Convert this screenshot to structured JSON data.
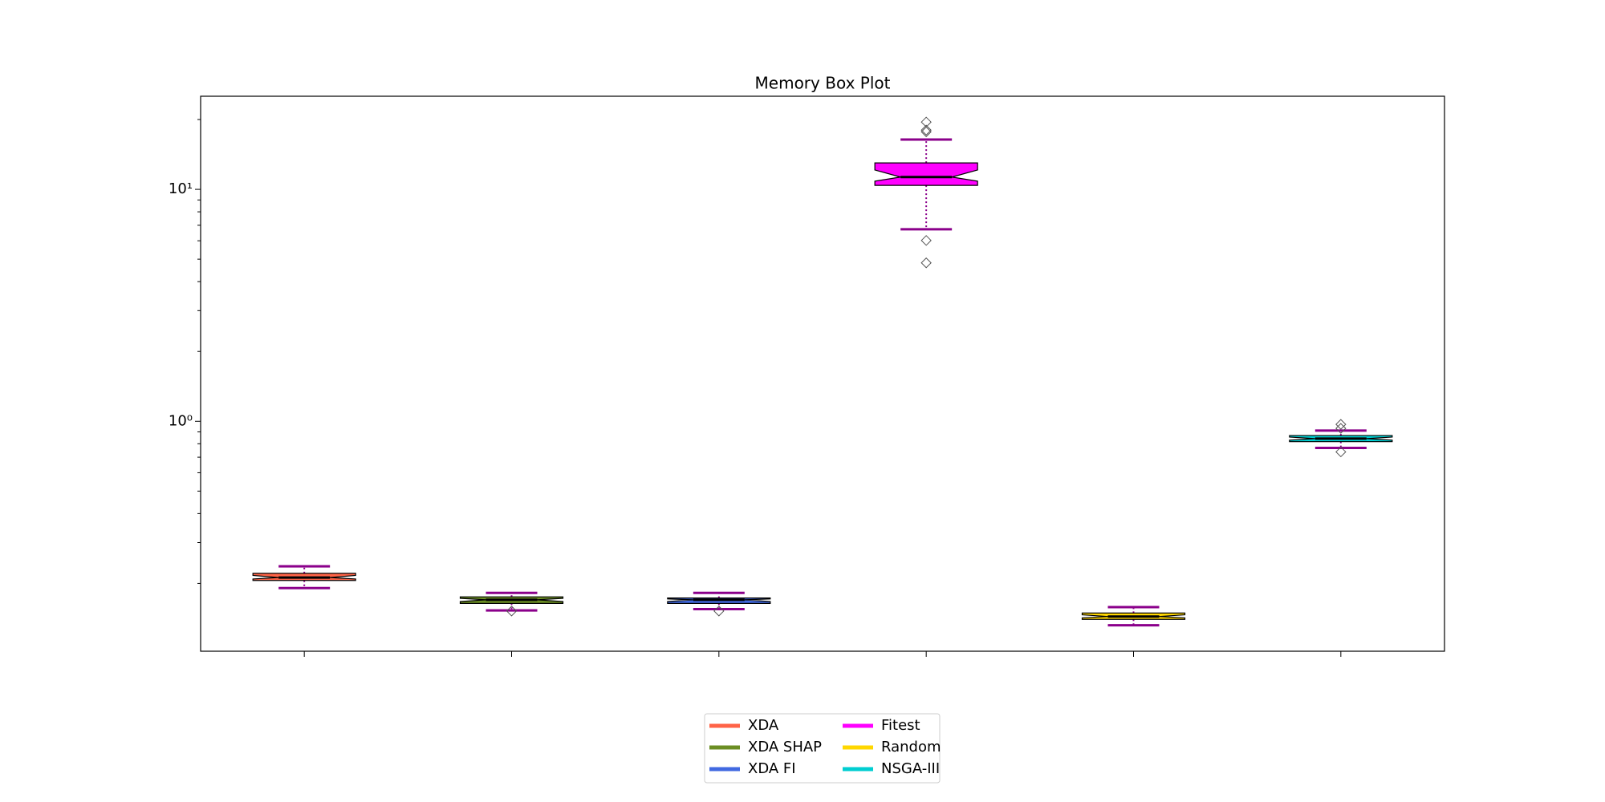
{
  "chart_data": {
    "type": "box",
    "title": "Memory Box Plot",
    "categories": [
      null,
      null,
      null,
      null,
      null,
      null
    ],
    "yscale": "log",
    "ylim": [
      0.102,
      25.2
    ],
    "yticks": [
      {
        "value": 1,
        "label": "10⁰"
      },
      {
        "value": 10,
        "label": "10¹"
      }
    ],
    "yminorticks": [
      0.2,
      0.3,
      0.4,
      0.5,
      0.6,
      0.7,
      0.8,
      0.9,
      2,
      3,
      4,
      5,
      6,
      7,
      8,
      9,
      20
    ],
    "whisker_color": "#8b008b",
    "legend": "lower center",
    "legend_columns": 2,
    "series": [
      {
        "name": "XDA",
        "color": "#ff6347",
        "whislo": 0.191,
        "q1": 0.206,
        "med": 0.212,
        "q3": 0.221,
        "whishi": 0.237,
        "fliers": []
      },
      {
        "name": "XDA SHAP",
        "color": "#6b8e23",
        "whislo": 0.153,
        "q1": 0.164,
        "med": 0.17,
        "q3": 0.175,
        "whishi": 0.182,
        "fliers": [
          0.152
        ]
      },
      {
        "name": "XDA FI",
        "color": "#4169e1",
        "whislo": 0.155,
        "q1": 0.164,
        "med": 0.17,
        "q3": 0.173,
        "whishi": 0.182,
        "fliers": [
          0.152
        ]
      },
      {
        "name": "Fitest",
        "color": "#ff00ff",
        "whislo": 6.73,
        "q1": 10.4,
        "med": 11.3,
        "q3": 13.0,
        "whishi": 16.4,
        "fliers": [
          19.5,
          18.0,
          17.7,
          6.02,
          4.82
        ]
      },
      {
        "name": "Random",
        "color": "#ffd700",
        "whislo": 0.132,
        "q1": 0.14,
        "med": 0.144,
        "q3": 0.149,
        "whishi": 0.158,
        "fliers": []
      },
      {
        "name": "NSGA-III",
        "color": "#00ced1",
        "whislo": 0.768,
        "q1": 0.817,
        "med": 0.842,
        "q3": 0.868,
        "whishi": 0.912,
        "fliers": [
          0.97,
          0.932,
          0.738
        ]
      }
    ]
  }
}
